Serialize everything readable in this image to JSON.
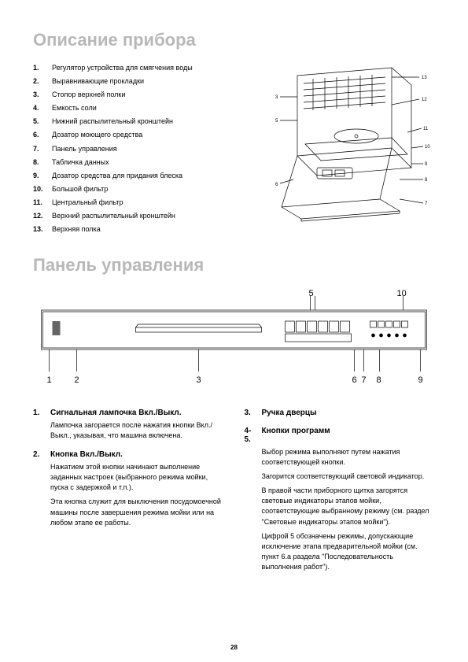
{
  "title1": "Описание прибора",
  "title2": "Панель управления",
  "page_number": "28",
  "parts": [
    {
      "n": "1.",
      "t": "Регулятор устройства для смягчения воды"
    },
    {
      "n": "2.",
      "t": "Выравнивающие прокладки"
    },
    {
      "n": "3.",
      "t": "Стопор верхней полки"
    },
    {
      "n": "4.",
      "t": "Емкость соли"
    },
    {
      "n": "5.",
      "t": "Нижний распылительный кронштейн"
    },
    {
      "n": "6.",
      "t": "Дозатор моющего средства"
    },
    {
      "n": "7.",
      "t": "Панель управления"
    },
    {
      "n": "8.",
      "t": "Табличка данных"
    },
    {
      "n": "9.",
      "t": "Дозатор средства для придания блеска"
    },
    {
      "n": "10.",
      "t": "Большой фильтр"
    },
    {
      "n": "11.",
      "t": "Центральный фильтр"
    },
    {
      "n": "12.",
      "t": "Верхний распылительный кронштейн"
    },
    {
      "n": "13.",
      "t": "Верхняя полка"
    }
  ],
  "panel_labels": [
    "1",
    "2",
    "3",
    "5",
    "6",
    "7",
    "8",
    "9",
    "10"
  ],
  "desc_left": [
    {
      "n": "1.",
      "t": "Сигнальная лампочка Вкл./Выкл.",
      "body": [
        "Лампочка загорается после нажатия кнопки Вкл./Выкл., указывая, что машина включена."
      ]
    },
    {
      "n": "2.",
      "t": "Кнопка Вкл./Выкл.",
      "body": [
        "Нажатием этой кнопки начинают выполнение заданных настроек (выбранного режима мойки, пуска с задержкой и т.п.).",
        "Эта кнопка служит для выключения посудомоечной машины после завершения режима мойки или на любом этапе ее работы."
      ]
    }
  ],
  "desc_right": [
    {
      "n": "3.",
      "t": "Ручка дверцы",
      "body": []
    },
    {
      "n": "4-5.",
      "t": "Кнопки программ",
      "body": [
        "Выбор режима выполняют путем нажатия соответствующей кнопки.",
        "Загорится соответствующий световой индикатор.",
        "В правой части приборного щитка загорятся световые индикаторы этапов мойки, соответствующие выбранному режиму (см. раздел \"Световые индикаторы этапов мойки\").",
        "Цифрой 5 обозначены режимы, допускающие исключение этапа предварительной мойки (см. пункт 6.а раздела \"Последовательность выполнения работ\")."
      ]
    }
  ],
  "colors": {
    "title_gray": "#b8b8b8",
    "line": "#000000",
    "bg": "#ffffff"
  }
}
